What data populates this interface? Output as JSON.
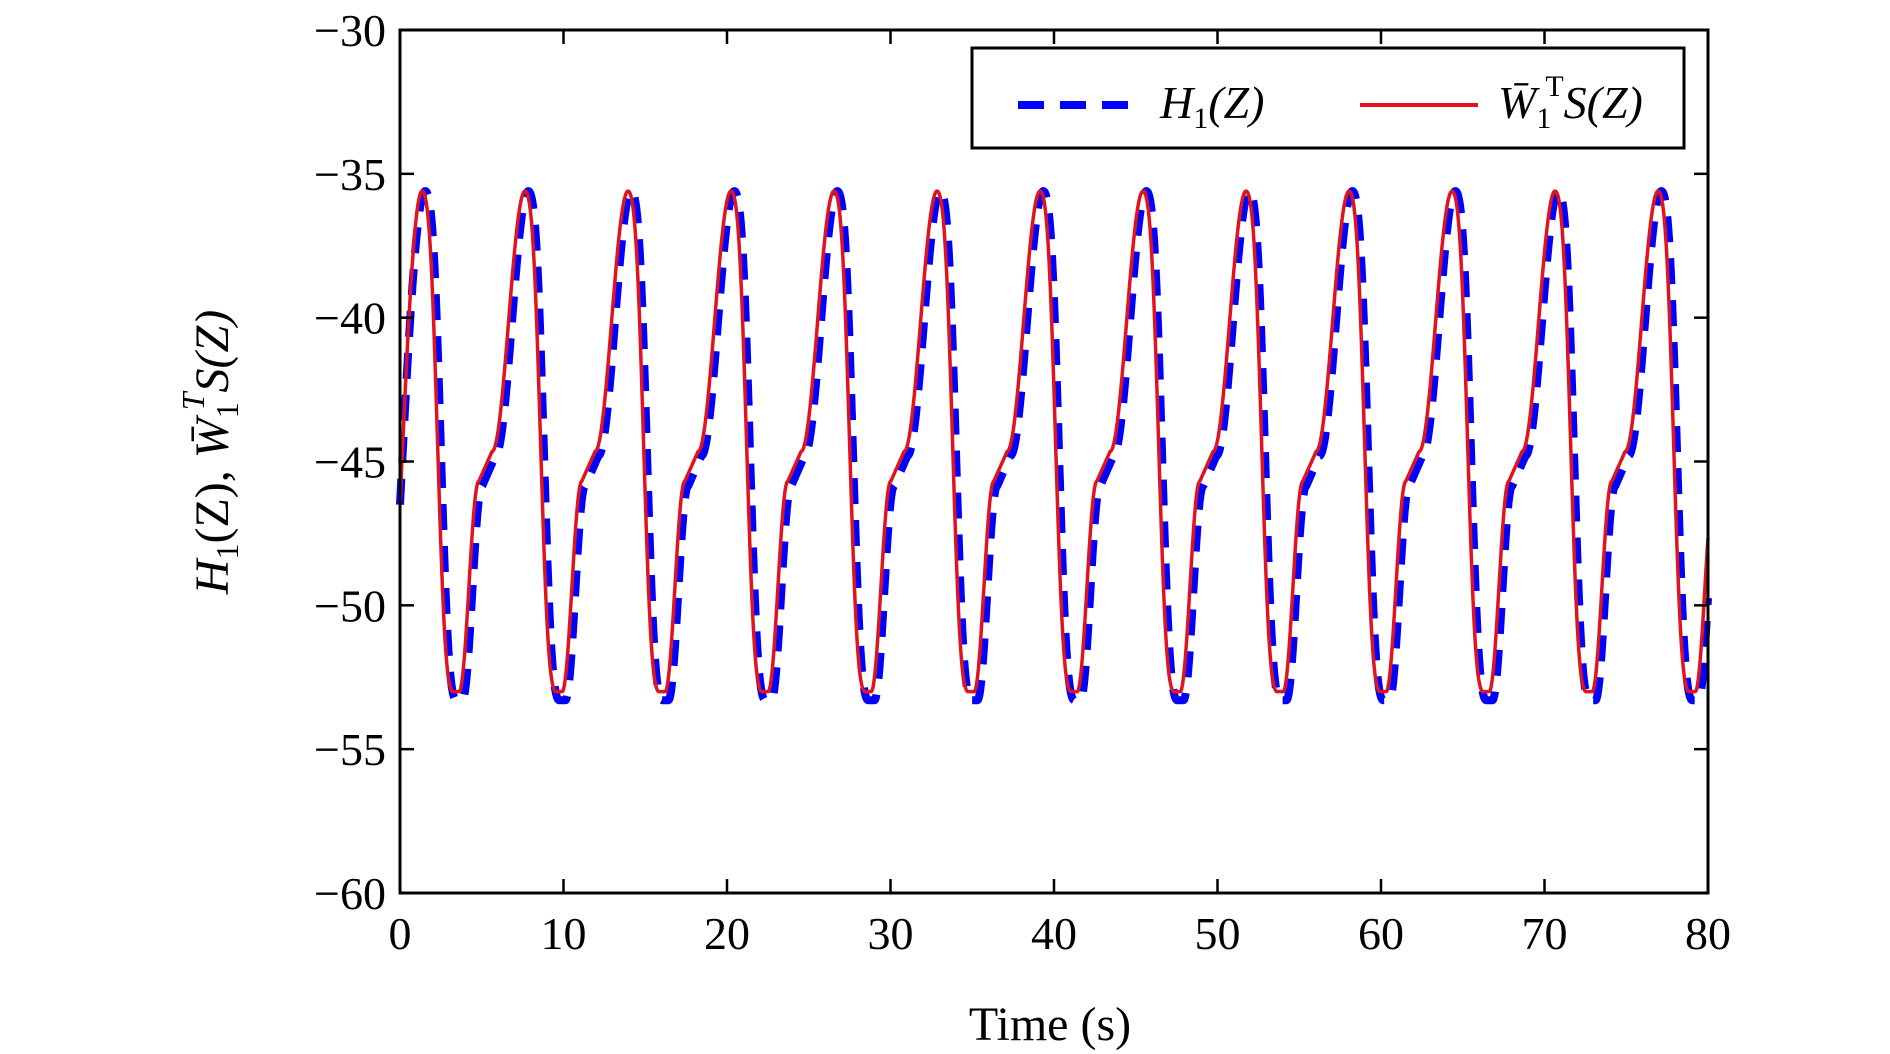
{
  "chart_data": {
    "type": "line",
    "title": "",
    "xlabel": "Time (s)",
    "ylabel_parts": {
      "h": "H",
      "h_sub": "1",
      "h_arg": "(Z), ",
      "w": "W̄",
      "w_sub": "1",
      "w_sup": "T",
      "w_arg": "S(Z)"
    },
    "xlim": [
      0,
      80
    ],
    "ylim": [
      -60,
      -30
    ],
    "xticks": [
      0,
      10,
      20,
      30,
      40,
      50,
      60,
      70,
      80
    ],
    "yticks": [
      -60,
      -55,
      -50,
      -45,
      -40,
      -35,
      -30
    ],
    "xtick_labels": [
      "0",
      "10",
      "20",
      "30",
      "40",
      "50",
      "60",
      "70",
      "80"
    ],
    "ytick_labels": [
      "−60",
      "−55",
      "−50",
      "−45",
      "−40",
      "−35",
      "−30"
    ],
    "grid": false,
    "legend_position": "top-right",
    "period": 6.3,
    "peak_value": -35.6,
    "trough_value": -53.0,
    "start_value": -46.5,
    "series": [
      {
        "legend": {
          "main": "H",
          "sub": "1",
          "tail": "(Z)"
        },
        "color": "#0000ff",
        "style": "dashed",
        "first_peak_time": 1.55,
        "trough_value": -53.3
      },
      {
        "legend": {
          "main": "W̄",
          "sub": "1",
          "sup": "T",
          "tail": "S(Z)"
        },
        "color": "#e0141e",
        "style": "solid",
        "first_peak_time": 1.35,
        "trough_value": -53.0
      }
    ]
  }
}
